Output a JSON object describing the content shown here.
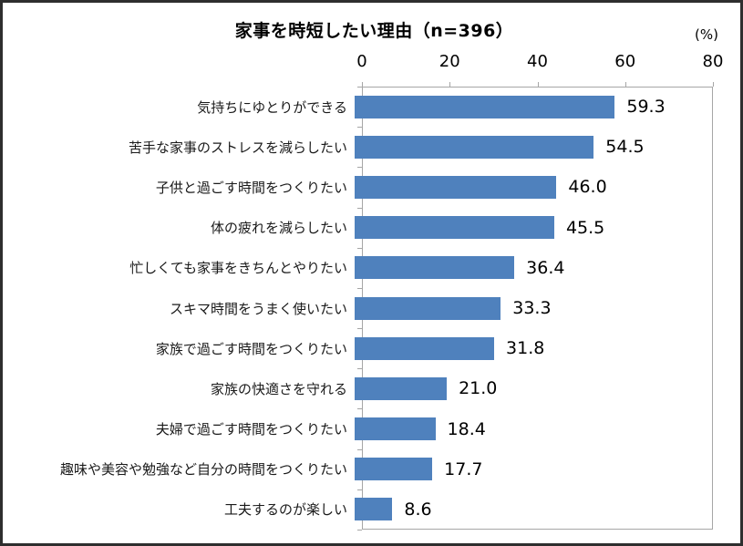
{
  "chart_data": {
    "type": "bar",
    "orientation": "horizontal",
    "title": "家事を時短したい理由（n=396）",
    "unit_label": "(%)",
    "categories": [
      "気持ちにゆとりができる",
      "苦手な家事のストレスを減らしたい",
      "子供と過ごす時間をつくりたい",
      "体の疲れを減らしたい",
      "忙しくても家事をきちんとやりたい",
      "スキマ時間をうまく使いたい",
      "家族で過ごす時間をつくりたい",
      "家族の快適さを守れる",
      "夫婦で過ごす時間をつくりたい",
      "趣味や美容や勉強など自分の時間をつくりたい",
      "工夫するのが楽しい"
    ],
    "values": [
      59.3,
      54.5,
      46.0,
      45.5,
      36.4,
      33.3,
      31.8,
      21.0,
      18.4,
      17.7,
      8.6
    ],
    "value_labels": [
      "59.3",
      "54.5",
      "46.0",
      "45.5",
      "36.4",
      "33.3",
      "31.8",
      "21.0",
      "18.4",
      "17.7",
      "8.6"
    ],
    "xlabel": "",
    "ylabel": "",
    "xlim": [
      0,
      80
    ],
    "x_ticks": [
      0,
      20,
      40,
      60,
      80
    ],
    "bar_color": "#4f81bd",
    "axis_color": "#a6a6a6",
    "grid": false,
    "legend": "none"
  }
}
